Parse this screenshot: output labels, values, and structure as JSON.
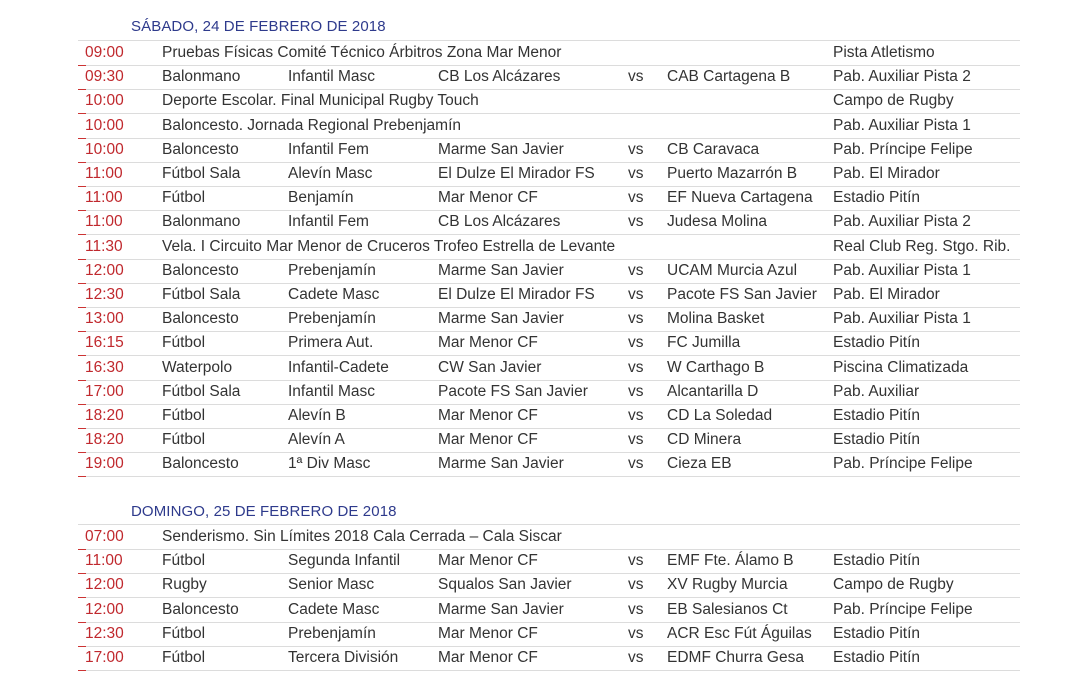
{
  "days": [
    {
      "title": "SÁBADO, 24 DE FEBRERO DE 2018",
      "rows": [
        {
          "time": "09:00",
          "text": "Pruebas Físicas Comité Técnico Árbitros Zona Mar Menor",
          "venue": "Pista Atletismo"
        },
        {
          "time": "09:30",
          "sport": "Balonmano",
          "category": "Infantil Masc",
          "home": "CB Los Alcázares",
          "vs": "vs",
          "away": "CAB Cartagena B",
          "venue": "Pab. Auxiliar Pista 2"
        },
        {
          "time": "10:00",
          "text": "Deporte Escolar. Final Municipal Rugby Touch",
          "venue": "Campo de Rugby"
        },
        {
          "time": "10:00",
          "text": "Baloncesto. Jornada Regional Prebenjamín",
          "venue": "Pab. Auxiliar Pista 1"
        },
        {
          "time": "10:00",
          "sport": "Baloncesto",
          "category": "Infantil Fem",
          "home": "Marme San Javier",
          "vs": "vs",
          "away": "CB Caravaca",
          "venue": "Pab. Príncipe Felipe"
        },
        {
          "time": "11:00",
          "sport": "Fútbol Sala",
          "category": "Alevín Masc",
          "home": "El Dulze El Mirador FS",
          "vs": "vs",
          "away": "Puerto Mazarrón B",
          "venue": "Pab. El Mirador"
        },
        {
          "time": "11:00",
          "sport": "Fútbol",
          "category": "Benjamín",
          "home": "Mar Menor CF",
          "vs": "vs",
          "away": "EF Nueva Cartagena",
          "venue": "Estadio Pitín"
        },
        {
          "time": "11:00",
          "sport": "Balonmano",
          "category": "Infantil Fem",
          "home": "CB Los Alcázares",
          "vs": "vs",
          "away": "Judesa Molina",
          "venue": "Pab. Auxiliar Pista 2"
        },
        {
          "time": "11:30",
          "text": "Vela. I Circuito Mar Menor de Cruceros Trofeo Estrella de Levante",
          "venue": "Real Club Reg. Stgo. Rib."
        },
        {
          "time": "12:00",
          "sport": "Baloncesto",
          "category": "Prebenjamín",
          "home": "Marme San Javier",
          "vs": "vs",
          "away": "UCAM Murcia Azul",
          "venue": "Pab. Auxiliar Pista 1"
        },
        {
          "time": "12:30",
          "sport": "Fútbol Sala",
          "category": "Cadete Masc",
          "home": "El Dulze El Mirador FS",
          "vs": "vs",
          "away": "Pacote FS San Javier",
          "venue": "Pab. El Mirador"
        },
        {
          "time": "13:00",
          "sport": "Baloncesto",
          "category": "Prebenjamín",
          "home": "Marme San Javier",
          "vs": "vs",
          "away": "Molina Basket",
          "venue": "Pab. Auxiliar Pista 1"
        },
        {
          "time": "16:15",
          "sport": "Fútbol",
          "category": "Primera Aut.",
          "home": "Mar Menor CF",
          "vs": "vs",
          "away": "FC Jumilla",
          "venue": "Estadio Pitín"
        },
        {
          "time": "16:30",
          "sport": "Waterpolo",
          "category": "Infantil-Cadete",
          "home": "CW San Javier",
          "vs": "vs",
          "away": "W Carthago B",
          "venue": "Piscina Climatizada"
        },
        {
          "time": "17:00",
          "sport": "Fútbol Sala",
          "category": "Infantil Masc",
          "home": "Pacote FS San Javier",
          "vs": "vs",
          "away": "Alcantarilla D",
          "venue": "Pab. Auxiliar"
        },
        {
          "time": "18:20",
          "sport": "Fútbol",
          "category": "Alevín B",
          "home": "Mar Menor CF",
          "vs": "vs",
          "away": "CD La Soledad",
          "venue": "Estadio Pitín"
        },
        {
          "time": "18:20",
          "sport": "Fútbol",
          "category": "Alevín A",
          "home": "Mar Menor CF",
          "vs": "vs",
          "away": "CD Minera",
          "venue": "Estadio Pitín"
        },
        {
          "time": "19:00",
          "sport": "Baloncesto",
          "category": "1ª Div Masc",
          "home": "Marme San Javier",
          "vs": "vs",
          "away": "Cieza EB",
          "venue": "Pab. Príncipe Felipe"
        }
      ]
    },
    {
      "title": "DOMINGO, 25 DE FEBRERO DE 2018",
      "rows": [
        {
          "time": "07:00",
          "text": "Senderismo. Sin Límites 2018   Cala Cerrada – Cala Siscar"
        },
        {
          "time": "11:00",
          "sport": "Fútbol",
          "category": "Segunda Infantil",
          "home": "Mar Menor CF",
          "vs": "vs",
          "away": "EMF Fte. Álamo B",
          "venue": "Estadio Pitín"
        },
        {
          "time": "12:00",
          "sport": "Rugby",
          "category": "Senior Masc",
          "home": "Squalos San Javier",
          "vs": "vs",
          "away": "XV Rugby Murcia",
          "venue": "Campo de Rugby"
        },
        {
          "time": "12:00",
          "sport": "Baloncesto",
          "category": "Cadete Masc",
          "home": "Marme San Javier",
          "vs": "vs",
          "away": "EB Salesianos Ct",
          "venue": "Pab. Príncipe Felipe"
        },
        {
          "time": "12:30",
          "sport": "Fútbol",
          "category": "Prebenjamín",
          "home": "Mar Menor CF",
          "vs": "vs",
          "away": "ACR Esc Fút Águilas",
          "venue": "Estadio Pitín"
        },
        {
          "time": "17:00",
          "sport": "Fútbol",
          "category": "Tercera División",
          "home": "Mar Menor CF",
          "vs": "vs",
          "away": "EDMF Churra Gesa",
          "venue": "Estadio Pitín"
        }
      ]
    }
  ]
}
